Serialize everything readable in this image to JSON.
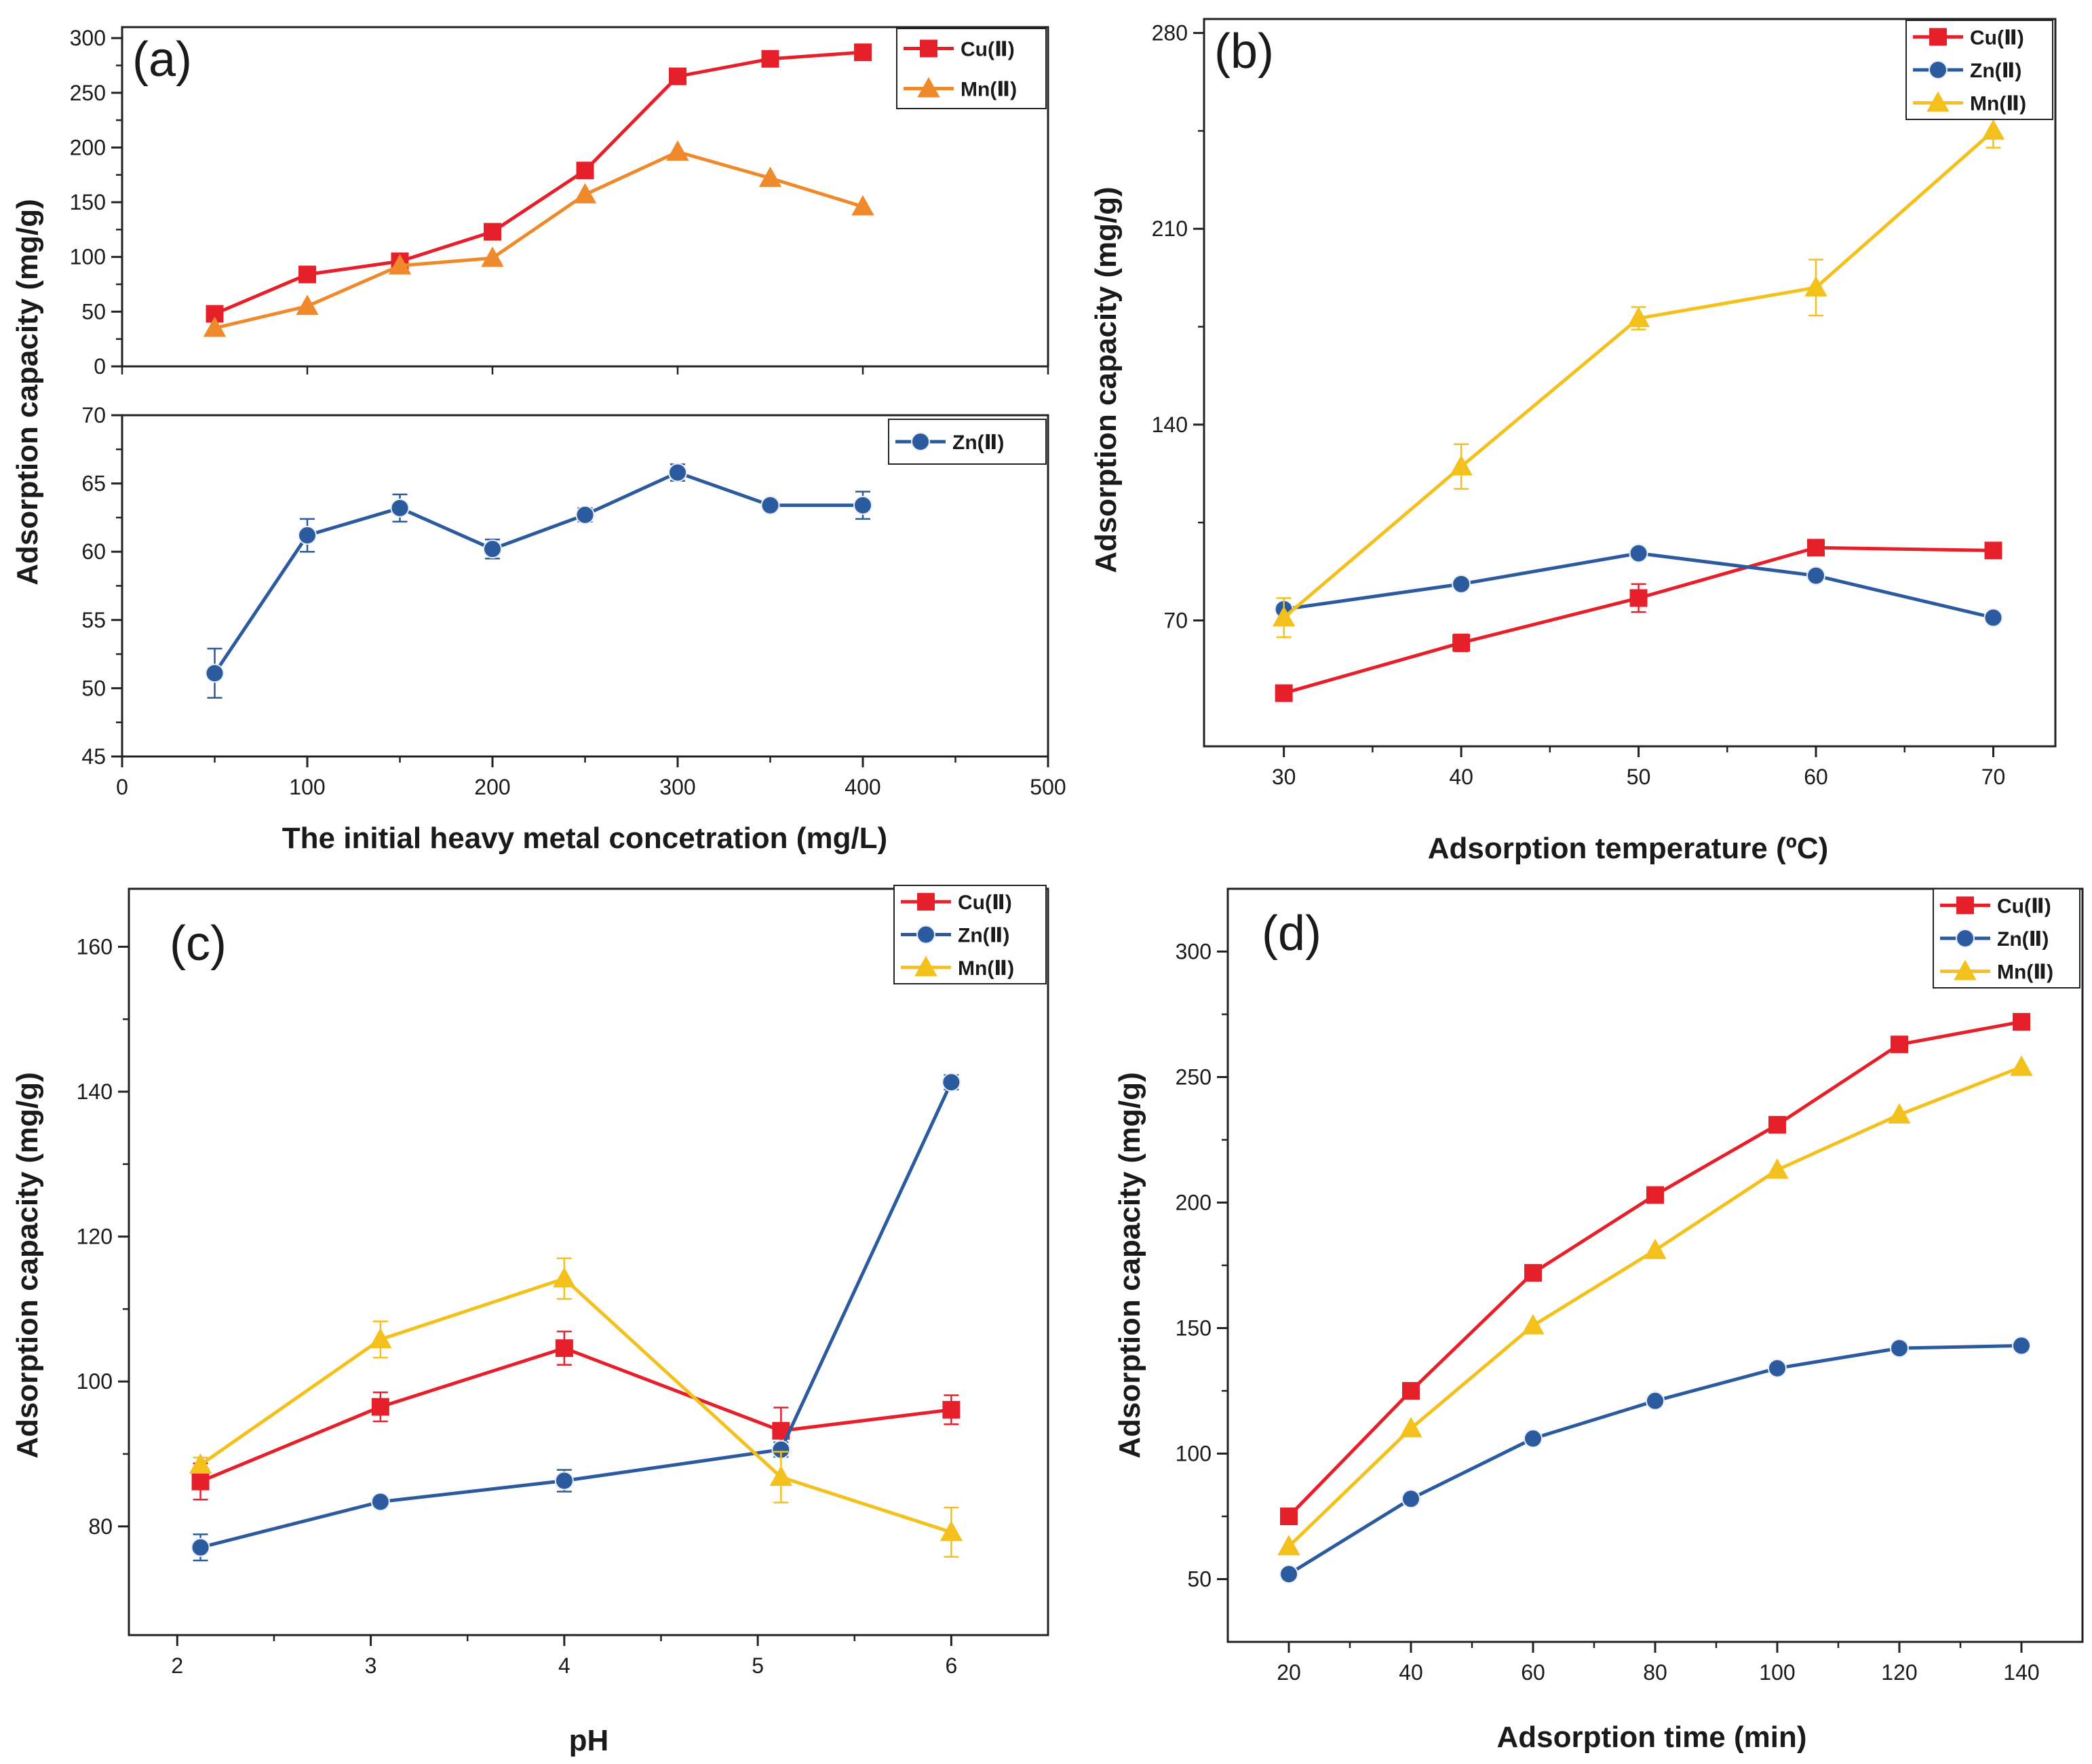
{
  "colors": {
    "cu": "#e5202b",
    "zn": "#2b5a9e",
    "mn_a": "#ef8a2c",
    "mn": "#f4c01c",
    "axis": "#222222"
  },
  "chart_data": [
    {
      "id": "a-top",
      "panel_label": "(a)",
      "type": "line",
      "ylabel": "Adsorption capacity (mg/g)",
      "ylim": [
        0,
        310
      ],
      "yticks": [
        "0",
        "50",
        "100",
        "150",
        "200",
        "250",
        "300"
      ],
      "xlim": [
        0,
        500
      ],
      "series": [
        {
          "name": "Cu(Ⅱ)",
          "marker": "square",
          "x": [
            50,
            100,
            150,
            200,
            250,
            300,
            350,
            400
          ],
          "y": [
            48,
            84,
            96,
            123,
            179,
            265,
            281,
            287
          ]
        },
        {
          "name": "Mn(Ⅱ)",
          "marker": "triangle",
          "x": [
            50,
            100,
            150,
            200,
            250,
            300,
            350,
            400
          ],
          "y": [
            35,
            55,
            92,
            99,
            157,
            196,
            172,
            146
          ]
        }
      ]
    },
    {
      "id": "a-bottom",
      "type": "line",
      "ylim": [
        45,
        70
      ],
      "yticks": [
        "45",
        "50",
        "55",
        "60",
        "65",
        "70"
      ],
      "xlim": [
        0,
        500
      ],
      "xticks": [
        "0",
        "100",
        "200",
        "300",
        "400",
        "500"
      ],
      "xlabel": "The initial heavy metal concetration (mg/L)",
      "series": [
        {
          "name": "Zn(Ⅱ)",
          "marker": "circle",
          "x": [
            50,
            100,
            150,
            200,
            250,
            300,
            350,
            400
          ],
          "y": [
            51.1,
            61.2,
            63.2,
            60.2,
            62.7,
            65.8,
            63.4,
            63.4
          ],
          "err": [
            1.8,
            1.2,
            1.0,
            0.7,
            0.5,
            0.6,
            0.3,
            1.0
          ]
        }
      ]
    },
    {
      "id": "b",
      "panel_label": "(b)",
      "type": "line",
      "xlabel": "Adsorption temperature (ºC)",
      "ylabel": "Adsorption capacity (mg/g)",
      "ylim": [
        25,
        285
      ],
      "yticks": [
        "70",
        "140",
        "210",
        "280"
      ],
      "xlim": [
        25.5,
        73.5
      ],
      "xticks": [
        "30",
        "40",
        "50",
        "60",
        "70"
      ],
      "series": [
        {
          "name": "Cu(Ⅱ)",
          "marker": "square",
          "x": [
            30,
            40,
            50,
            60,
            70
          ],
          "y": [
            44,
            62,
            78,
            96,
            95
          ],
          "err": [
            1,
            3,
            5,
            1,
            1
          ]
        },
        {
          "name": "Zn(Ⅱ)",
          "marker": "circle",
          "x": [
            30,
            40,
            50,
            60,
            70
          ],
          "y": [
            74,
            83,
            94,
            86,
            71
          ],
          "err": [
            1,
            1,
            1,
            1,
            1
          ]
        },
        {
          "name": "Mn(Ⅱ)",
          "marker": "triangle",
          "x": [
            30,
            40,
            50,
            60,
            70
          ],
          "y": [
            71,
            125,
            178,
            189,
            245
          ],
          "err": [
            7,
            8,
            4,
            10,
            6
          ]
        }
      ]
    },
    {
      "id": "c",
      "panel_label": "(c)",
      "type": "line",
      "xlabel": "pH",
      "ylabel": "Adsorption capacity (mg/g)",
      "ylim": [
        65,
        168
      ],
      "yticks": [
        "80",
        "100",
        "120",
        "140",
        "160"
      ],
      "xlim": [
        1.75,
        6.5
      ],
      "xticks": [
        "2",
        "3",
        "4",
        "5",
        "6"
      ],
      "series": [
        {
          "name": "Cu(Ⅱ)",
          "marker": "square",
          "x": [
            2.12,
            3.05,
            4.0,
            5.12,
            6.0
          ],
          "y": [
            86.2,
            96.5,
            104.6,
            93.2,
            96.1
          ],
          "err": [
            2.5,
            2.0,
            2.3,
            3.2,
            2.0
          ]
        },
        {
          "name": "Zn(Ⅱ)",
          "marker": "circle",
          "x": [
            2.12,
            3.05,
            4.0,
            5.12,
            6.0
          ],
          "y": [
            77.1,
            83.4,
            86.3,
            90.6,
            141.3
          ],
          "err": [
            1.8,
            0.5,
            1.5,
            1.0,
            1.0
          ]
        },
        {
          "name": "Mn(Ⅱ)",
          "marker": "triangle",
          "x": [
            2.12,
            3.05,
            4.0,
            5.12,
            6.0
          ],
          "y": [
            88.5,
            105.8,
            114.2,
            86.8,
            79.2
          ],
          "err": [
            1.0,
            2.5,
            2.8,
            3.5,
            3.4
          ]
        }
      ]
    },
    {
      "id": "d",
      "panel_label": "(d)",
      "type": "line",
      "xlabel": "Adsorption time (min)",
      "ylabel": "Adsorption capacity (mg/g)",
      "ylim": [
        25,
        325
      ],
      "yticks": [
        "50",
        "100",
        "150",
        "200",
        "250",
        "300"
      ],
      "xlim": [
        10,
        150
      ],
      "xticks": [
        "20",
        "40",
        "60",
        "80",
        "100",
        "120",
        "140"
      ],
      "series": [
        {
          "name": "Cu(Ⅱ)",
          "marker": "square",
          "x": [
            20,
            40,
            60,
            80,
            100,
            120,
            140
          ],
          "y": [
            75,
            125,
            172,
            203,
            231,
            263,
            272
          ]
        },
        {
          "name": "Zn(Ⅱ)",
          "marker": "circle",
          "x": [
            20,
            40,
            60,
            80,
            100,
            120,
            140
          ],
          "y": [
            52,
            82,
            106,
            121,
            134,
            142,
            143
          ]
        },
        {
          "name": "Mn(Ⅱ)",
          "marker": "triangle",
          "x": [
            20,
            40,
            60,
            80,
            100,
            120,
            140
          ],
          "y": [
            63,
            110,
            151,
            181,
            213,
            235,
            254
          ]
        }
      ]
    }
  ]
}
